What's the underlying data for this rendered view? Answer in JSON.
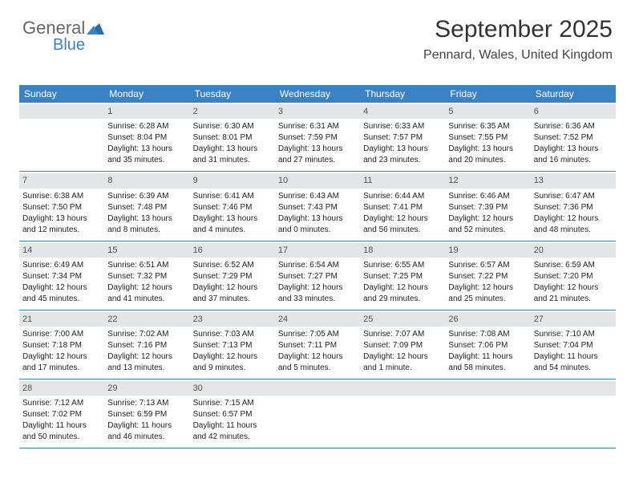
{
  "logo": {
    "line1": "General",
    "line2": "Blue"
  },
  "title": "September 2025",
  "location": "Pennard, Wales, United Kingdom",
  "header_color": "#3b82c4",
  "daynum_bg": "#e3e5e7",
  "day_headers": [
    "Sunday",
    "Monday",
    "Tuesday",
    "Wednesday",
    "Thursday",
    "Friday",
    "Saturday"
  ],
  "weeks": [
    [
      {
        "n": "",
        "lines": []
      },
      {
        "n": "1",
        "lines": [
          "Sunrise: 6:28 AM",
          "Sunset: 8:04 PM",
          "Daylight: 13 hours",
          "and 35 minutes."
        ]
      },
      {
        "n": "2",
        "lines": [
          "Sunrise: 6:30 AM",
          "Sunset: 8:01 PM",
          "Daylight: 13 hours",
          "and 31 minutes."
        ]
      },
      {
        "n": "3",
        "lines": [
          "Sunrise: 6:31 AM",
          "Sunset: 7:59 PM",
          "Daylight: 13 hours",
          "and 27 minutes."
        ]
      },
      {
        "n": "4",
        "lines": [
          "Sunrise: 6:33 AM",
          "Sunset: 7:57 PM",
          "Daylight: 13 hours",
          "and 23 minutes."
        ]
      },
      {
        "n": "5",
        "lines": [
          "Sunrise: 6:35 AM",
          "Sunset: 7:55 PM",
          "Daylight: 13 hours",
          "and 20 minutes."
        ]
      },
      {
        "n": "6",
        "lines": [
          "Sunrise: 6:36 AM",
          "Sunset: 7:52 PM",
          "Daylight: 13 hours",
          "and 16 minutes."
        ]
      }
    ],
    [
      {
        "n": "7",
        "lines": [
          "Sunrise: 6:38 AM",
          "Sunset: 7:50 PM",
          "Daylight: 13 hours",
          "and 12 minutes."
        ]
      },
      {
        "n": "8",
        "lines": [
          "Sunrise: 6:39 AM",
          "Sunset: 7:48 PM",
          "Daylight: 13 hours",
          "and 8 minutes."
        ]
      },
      {
        "n": "9",
        "lines": [
          "Sunrise: 6:41 AM",
          "Sunset: 7:46 PM",
          "Daylight: 13 hours",
          "and 4 minutes."
        ]
      },
      {
        "n": "10",
        "lines": [
          "Sunrise: 6:43 AM",
          "Sunset: 7:43 PM",
          "Daylight: 13 hours",
          "and 0 minutes."
        ]
      },
      {
        "n": "11",
        "lines": [
          "Sunrise: 6:44 AM",
          "Sunset: 7:41 PM",
          "Daylight: 12 hours",
          "and 56 minutes."
        ]
      },
      {
        "n": "12",
        "lines": [
          "Sunrise: 6:46 AM",
          "Sunset: 7:39 PM",
          "Daylight: 12 hours",
          "and 52 minutes."
        ]
      },
      {
        "n": "13",
        "lines": [
          "Sunrise: 6:47 AM",
          "Sunset: 7:36 PM",
          "Daylight: 12 hours",
          "and 48 minutes."
        ]
      }
    ],
    [
      {
        "n": "14",
        "lines": [
          "Sunrise: 6:49 AM",
          "Sunset: 7:34 PM",
          "Daylight: 12 hours",
          "and 45 minutes."
        ]
      },
      {
        "n": "15",
        "lines": [
          "Sunrise: 6:51 AM",
          "Sunset: 7:32 PM",
          "Daylight: 12 hours",
          "and 41 minutes."
        ]
      },
      {
        "n": "16",
        "lines": [
          "Sunrise: 6:52 AM",
          "Sunset: 7:29 PM",
          "Daylight: 12 hours",
          "and 37 minutes."
        ]
      },
      {
        "n": "17",
        "lines": [
          "Sunrise: 6:54 AM",
          "Sunset: 7:27 PM",
          "Daylight: 12 hours",
          "and 33 minutes."
        ]
      },
      {
        "n": "18",
        "lines": [
          "Sunrise: 6:55 AM",
          "Sunset: 7:25 PM",
          "Daylight: 12 hours",
          "and 29 minutes."
        ]
      },
      {
        "n": "19",
        "lines": [
          "Sunrise: 6:57 AM",
          "Sunset: 7:22 PM",
          "Daylight: 12 hours",
          "and 25 minutes."
        ]
      },
      {
        "n": "20",
        "lines": [
          "Sunrise: 6:59 AM",
          "Sunset: 7:20 PM",
          "Daylight: 12 hours",
          "and 21 minutes."
        ]
      }
    ],
    [
      {
        "n": "21",
        "lines": [
          "Sunrise: 7:00 AM",
          "Sunset: 7:18 PM",
          "Daylight: 12 hours",
          "and 17 minutes."
        ]
      },
      {
        "n": "22",
        "lines": [
          "Sunrise: 7:02 AM",
          "Sunset: 7:16 PM",
          "Daylight: 12 hours",
          "and 13 minutes."
        ]
      },
      {
        "n": "23",
        "lines": [
          "Sunrise: 7:03 AM",
          "Sunset: 7:13 PM",
          "Daylight: 12 hours",
          "and 9 minutes."
        ]
      },
      {
        "n": "24",
        "lines": [
          "Sunrise: 7:05 AM",
          "Sunset: 7:11 PM",
          "Daylight: 12 hours",
          "and 5 minutes."
        ]
      },
      {
        "n": "25",
        "lines": [
          "Sunrise: 7:07 AM",
          "Sunset: 7:09 PM",
          "Daylight: 12 hours",
          "and 1 minute."
        ]
      },
      {
        "n": "26",
        "lines": [
          "Sunrise: 7:08 AM",
          "Sunset: 7:06 PM",
          "Daylight: 11 hours",
          "and 58 minutes."
        ]
      },
      {
        "n": "27",
        "lines": [
          "Sunrise: 7:10 AM",
          "Sunset: 7:04 PM",
          "Daylight: 11 hours",
          "and 54 minutes."
        ]
      }
    ],
    [
      {
        "n": "28",
        "lines": [
          "Sunrise: 7:12 AM",
          "Sunset: 7:02 PM",
          "Daylight: 11 hours",
          "and 50 minutes."
        ]
      },
      {
        "n": "29",
        "lines": [
          "Sunrise: 7:13 AM",
          "Sunset: 6:59 PM",
          "Daylight: 11 hours",
          "and 46 minutes."
        ]
      },
      {
        "n": "30",
        "lines": [
          "Sunrise: 7:15 AM",
          "Sunset: 6:57 PM",
          "Daylight: 11 hours",
          "and 42 minutes."
        ]
      },
      {
        "n": "",
        "lines": []
      },
      {
        "n": "",
        "lines": []
      },
      {
        "n": "",
        "lines": []
      },
      {
        "n": "",
        "lines": []
      }
    ]
  ]
}
